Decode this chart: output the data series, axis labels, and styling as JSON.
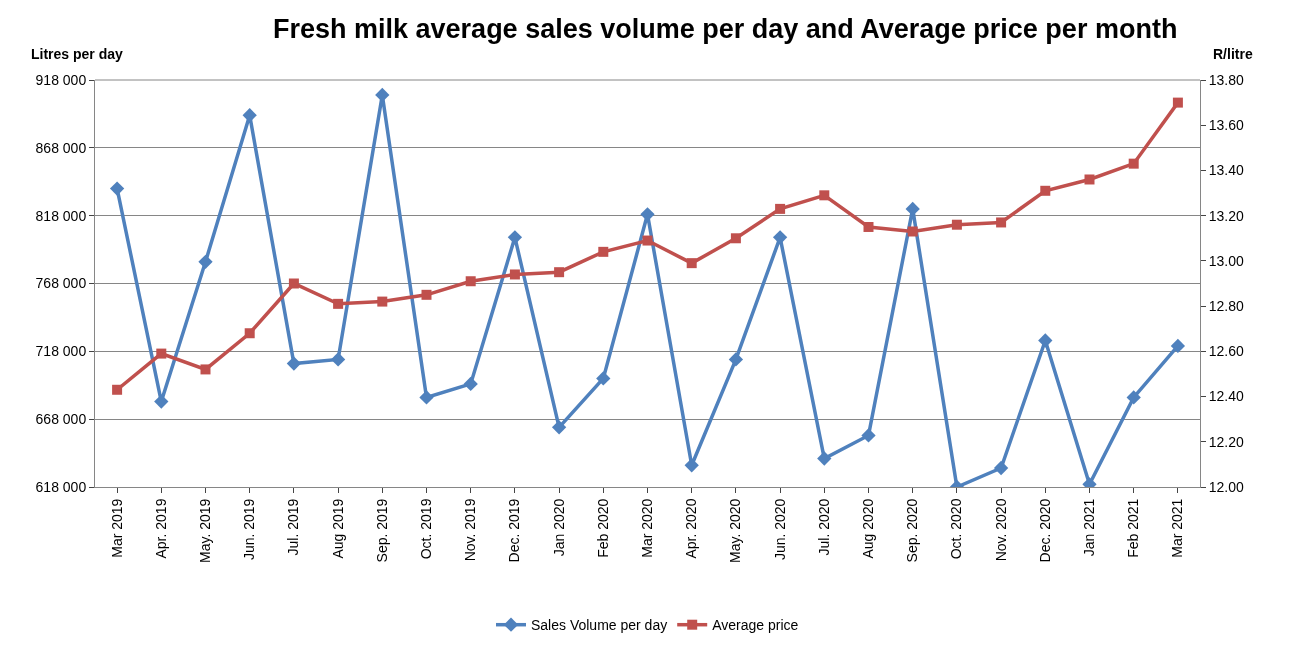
{
  "chart_data": {
    "type": "line",
    "title": "Fresh milk average sales volume per day and Average price per month",
    "ylabel": "Litres per day",
    "y2label": "R/litre",
    "categories": [
      "Mar 2019",
      "Apr. 2019",
      "May. 2019",
      "Jun. 2019",
      "Jul. 2019",
      "Aug 2019",
      "Sep. 2019",
      "Oct. 2019",
      "Nov. 2019",
      "Dec. 2019",
      "Jan 2020",
      "Feb 2020",
      "Mar 2020",
      "Apr. 2020",
      "May. 2020",
      "Jun. 2020",
      "Jul. 2020",
      "Aug 2020",
      "Sep. 2020",
      "Oct. 2020",
      "Nov. 2020",
      "Dec. 2020",
      "Jan 2021",
      "Feb 2021",
      "Mar 2021"
    ],
    "series": [
      {
        "name": "Sales Volume per day",
        "color": "#4f81bd",
        "marker": "diamond",
        "values": [
          838000,
          681000,
          784000,
          892000,
          709000,
          712000,
          907000,
          684000,
          694000,
          802000,
          662000,
          698000,
          819000,
          634000,
          712000,
          802000,
          639000,
          656000,
          823000,
          618000,
          632000,
          726000,
          620000,
          684000,
          722000
        ]
      },
      {
        "name": "Average price",
        "color": "#c0504d",
        "marker": "square",
        "axis": "y2",
        "values": [
          12.43,
          12.59,
          12.52,
          12.68,
          12.9,
          12.81,
          12.82,
          12.85,
          12.91,
          12.94,
          12.95,
          13.04,
          13.09,
          12.99,
          13.1,
          13.23,
          13.29,
          13.15,
          13.13,
          13.16,
          13.17,
          13.31,
          13.36,
          13.43,
          13.7
        ]
      }
    ],
    "ylim": [
      618000,
      918000
    ],
    "yticks": [
      {
        "value": 618000,
        "label": "618 000"
      },
      {
        "value": 668000,
        "label": "668 000"
      },
      {
        "value": 718000,
        "label": "718 000"
      },
      {
        "value": 768000,
        "label": "768 000"
      },
      {
        "value": 818000,
        "label": "818 000"
      },
      {
        "value": 868000,
        "label": "868 000"
      },
      {
        "value": 918000,
        "label": "918 000"
      }
    ],
    "y2lim": [
      12.0,
      13.8
    ],
    "y2ticks": [
      {
        "value": 12.0,
        "label": "12.00"
      },
      {
        "value": 12.2,
        "label": "12.20"
      },
      {
        "value": 12.4,
        "label": "12.40"
      },
      {
        "value": 12.6,
        "label": "12.60"
      },
      {
        "value": 12.8,
        "label": "12.80"
      },
      {
        "value": 13.0,
        "label": "13.00"
      },
      {
        "value": 13.2,
        "label": "13.20"
      },
      {
        "value": 13.4,
        "label": "13.40"
      },
      {
        "value": 13.6,
        "label": "13.60"
      },
      {
        "value": 13.8,
        "label": "13.80"
      }
    ],
    "grid": "y",
    "legend": "bottom",
    "line_style": "solid"
  }
}
